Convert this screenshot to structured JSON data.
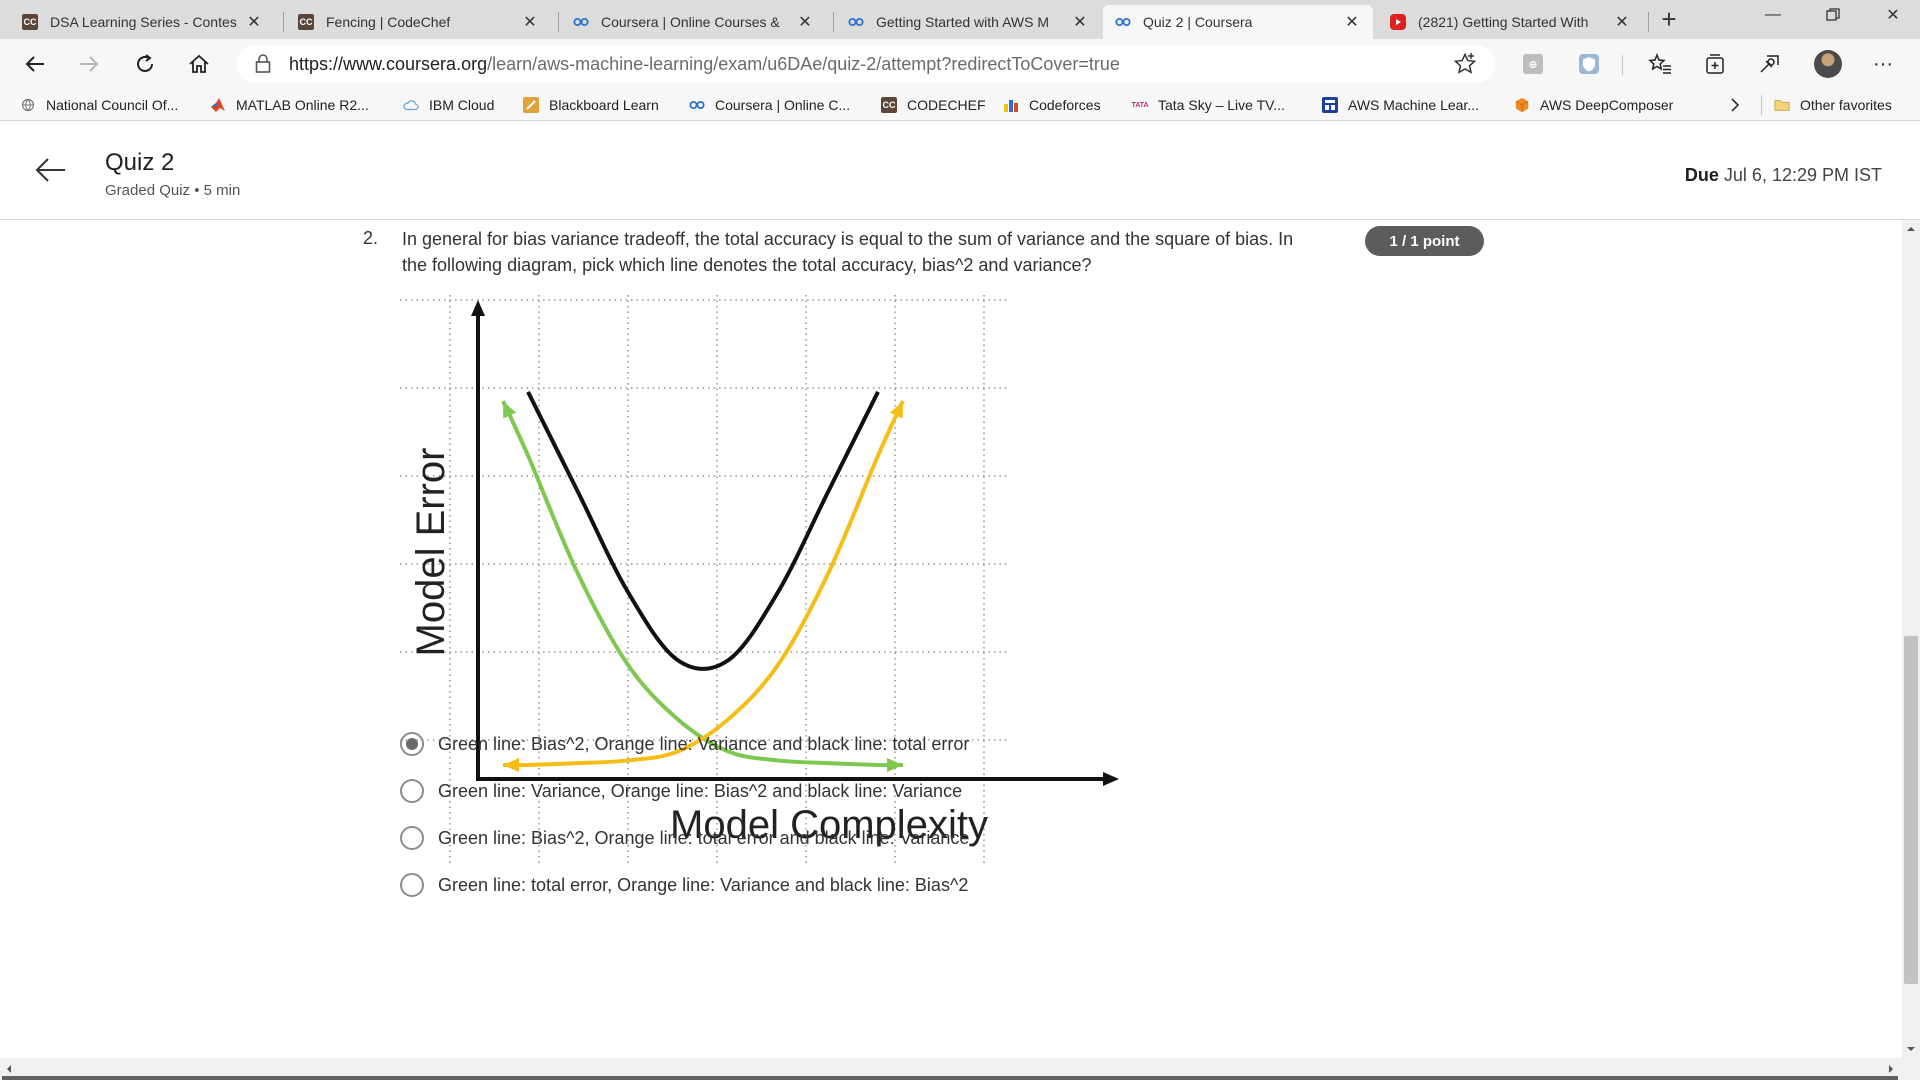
{
  "browser": {
    "tabs": [
      {
        "title": "DSA Learning Series - Contes",
        "icon": "codechef-icon",
        "active": false
      },
      {
        "title": "Fencing | CodeChef",
        "icon": "codechef-icon",
        "active": false
      },
      {
        "title": "Coursera | Online Courses &",
        "icon": "coursera-icon",
        "active": false
      },
      {
        "title": "Getting Started with AWS M",
        "icon": "coursera-icon",
        "active": false
      },
      {
        "title": "Quiz 2 | Coursera",
        "icon": "coursera-icon",
        "active": true
      },
      {
        "title": "(2821) Getting Started With",
        "icon": "youtube-icon",
        "active": false
      }
    ],
    "url_host": "https://www.coursera.org",
    "url_path": "/learn/aws-machine-learning/exam/u6DAe/quiz-2/attempt?redirectToCover=true"
  },
  "bookmarks": [
    {
      "label": "National Council Of...",
      "icon": "globe-icon"
    },
    {
      "label": "MATLAB Online R2...",
      "icon": "matlab-icon"
    },
    {
      "label": "IBM Cloud",
      "icon": "cloud-icon"
    },
    {
      "label": "Blackboard Learn",
      "icon": "blackboard-icon"
    },
    {
      "label": "Coursera | Online C...",
      "icon": "coursera-icon"
    },
    {
      "label": "CODECHEF",
      "icon": "codechef-icon"
    },
    {
      "label": "Codeforces",
      "icon": "codeforces-icon"
    },
    {
      "label": "Tata Sky – Live TV...",
      "icon": "tatasky-icon"
    },
    {
      "label": "AWS Machine Lear...",
      "icon": "aws-icon"
    },
    {
      "label": "AWS DeepComposer",
      "icon": "aws-deepcomposer-icon"
    }
  ],
  "other_favorites": "Other favorites",
  "quiz": {
    "title": "Quiz 2",
    "subtitle": "Graded Quiz • 5 min",
    "due_label": "Due",
    "due_value": "Jul 6, 12:29 PM IST"
  },
  "question": {
    "number": "2.",
    "text": "In general for bias variance tradeoff, the total accuracy is equal to the sum of variance and the square of bias. In the following diagram, pick which line denotes the total accuracy, bias^2 and variance?",
    "points": "1 / 1 point",
    "options": [
      {
        "label": "Green line: Bias^2, Orange line: Variance and black line: total error",
        "selected": true
      },
      {
        "label": "Green line: Variance, Orange line: Bias^2 and black line: Variance",
        "selected": false
      },
      {
        "label": "Green line: Bias^2, Orange line: total error and black line: Variance",
        "selected": false
      },
      {
        "label": "Green line: total error, Orange line: Variance and black line: Bias^2",
        "selected": false
      }
    ]
  },
  "chart_data": {
    "type": "line",
    "xlabel": "Model Complexity",
    "ylabel": "Model Error",
    "grid": true,
    "series": [
      {
        "color": "#7ec850",
        "shape": "decreasing",
        "x": [
          0.5,
          1,
          2,
          3,
          4,
          5,
          6,
          7,
          8,
          8.5
        ],
        "y": [
          4,
          3.4,
          2.1,
          1.1,
          0.5,
          0.15,
          0.05,
          0.02,
          0.0,
          0.0
        ]
      },
      {
        "color": "#f5be16",
        "shape": "increasing",
        "x": [
          0.5,
          1,
          2,
          3,
          4,
          5,
          6,
          7,
          8,
          8.5
        ],
        "y": [
          0.0,
          0.0,
          0.02,
          0.05,
          0.15,
          0.5,
          1.1,
          2.1,
          3.4,
          4
        ]
      },
      {
        "color": "#111111",
        "shape": "u-shaped",
        "x": [
          1,
          2,
          3,
          4,
          5,
          6,
          7,
          8
        ],
        "y": [
          4.1,
          3.0,
          1.9,
          1.15,
          1.15,
          1.9,
          3.0,
          4.1
        ]
      }
    ]
  },
  "colors": {
    "green": "#7ec850",
    "orange": "#f5be16",
    "black": "#111111",
    "badge": "#5c5c5c"
  }
}
